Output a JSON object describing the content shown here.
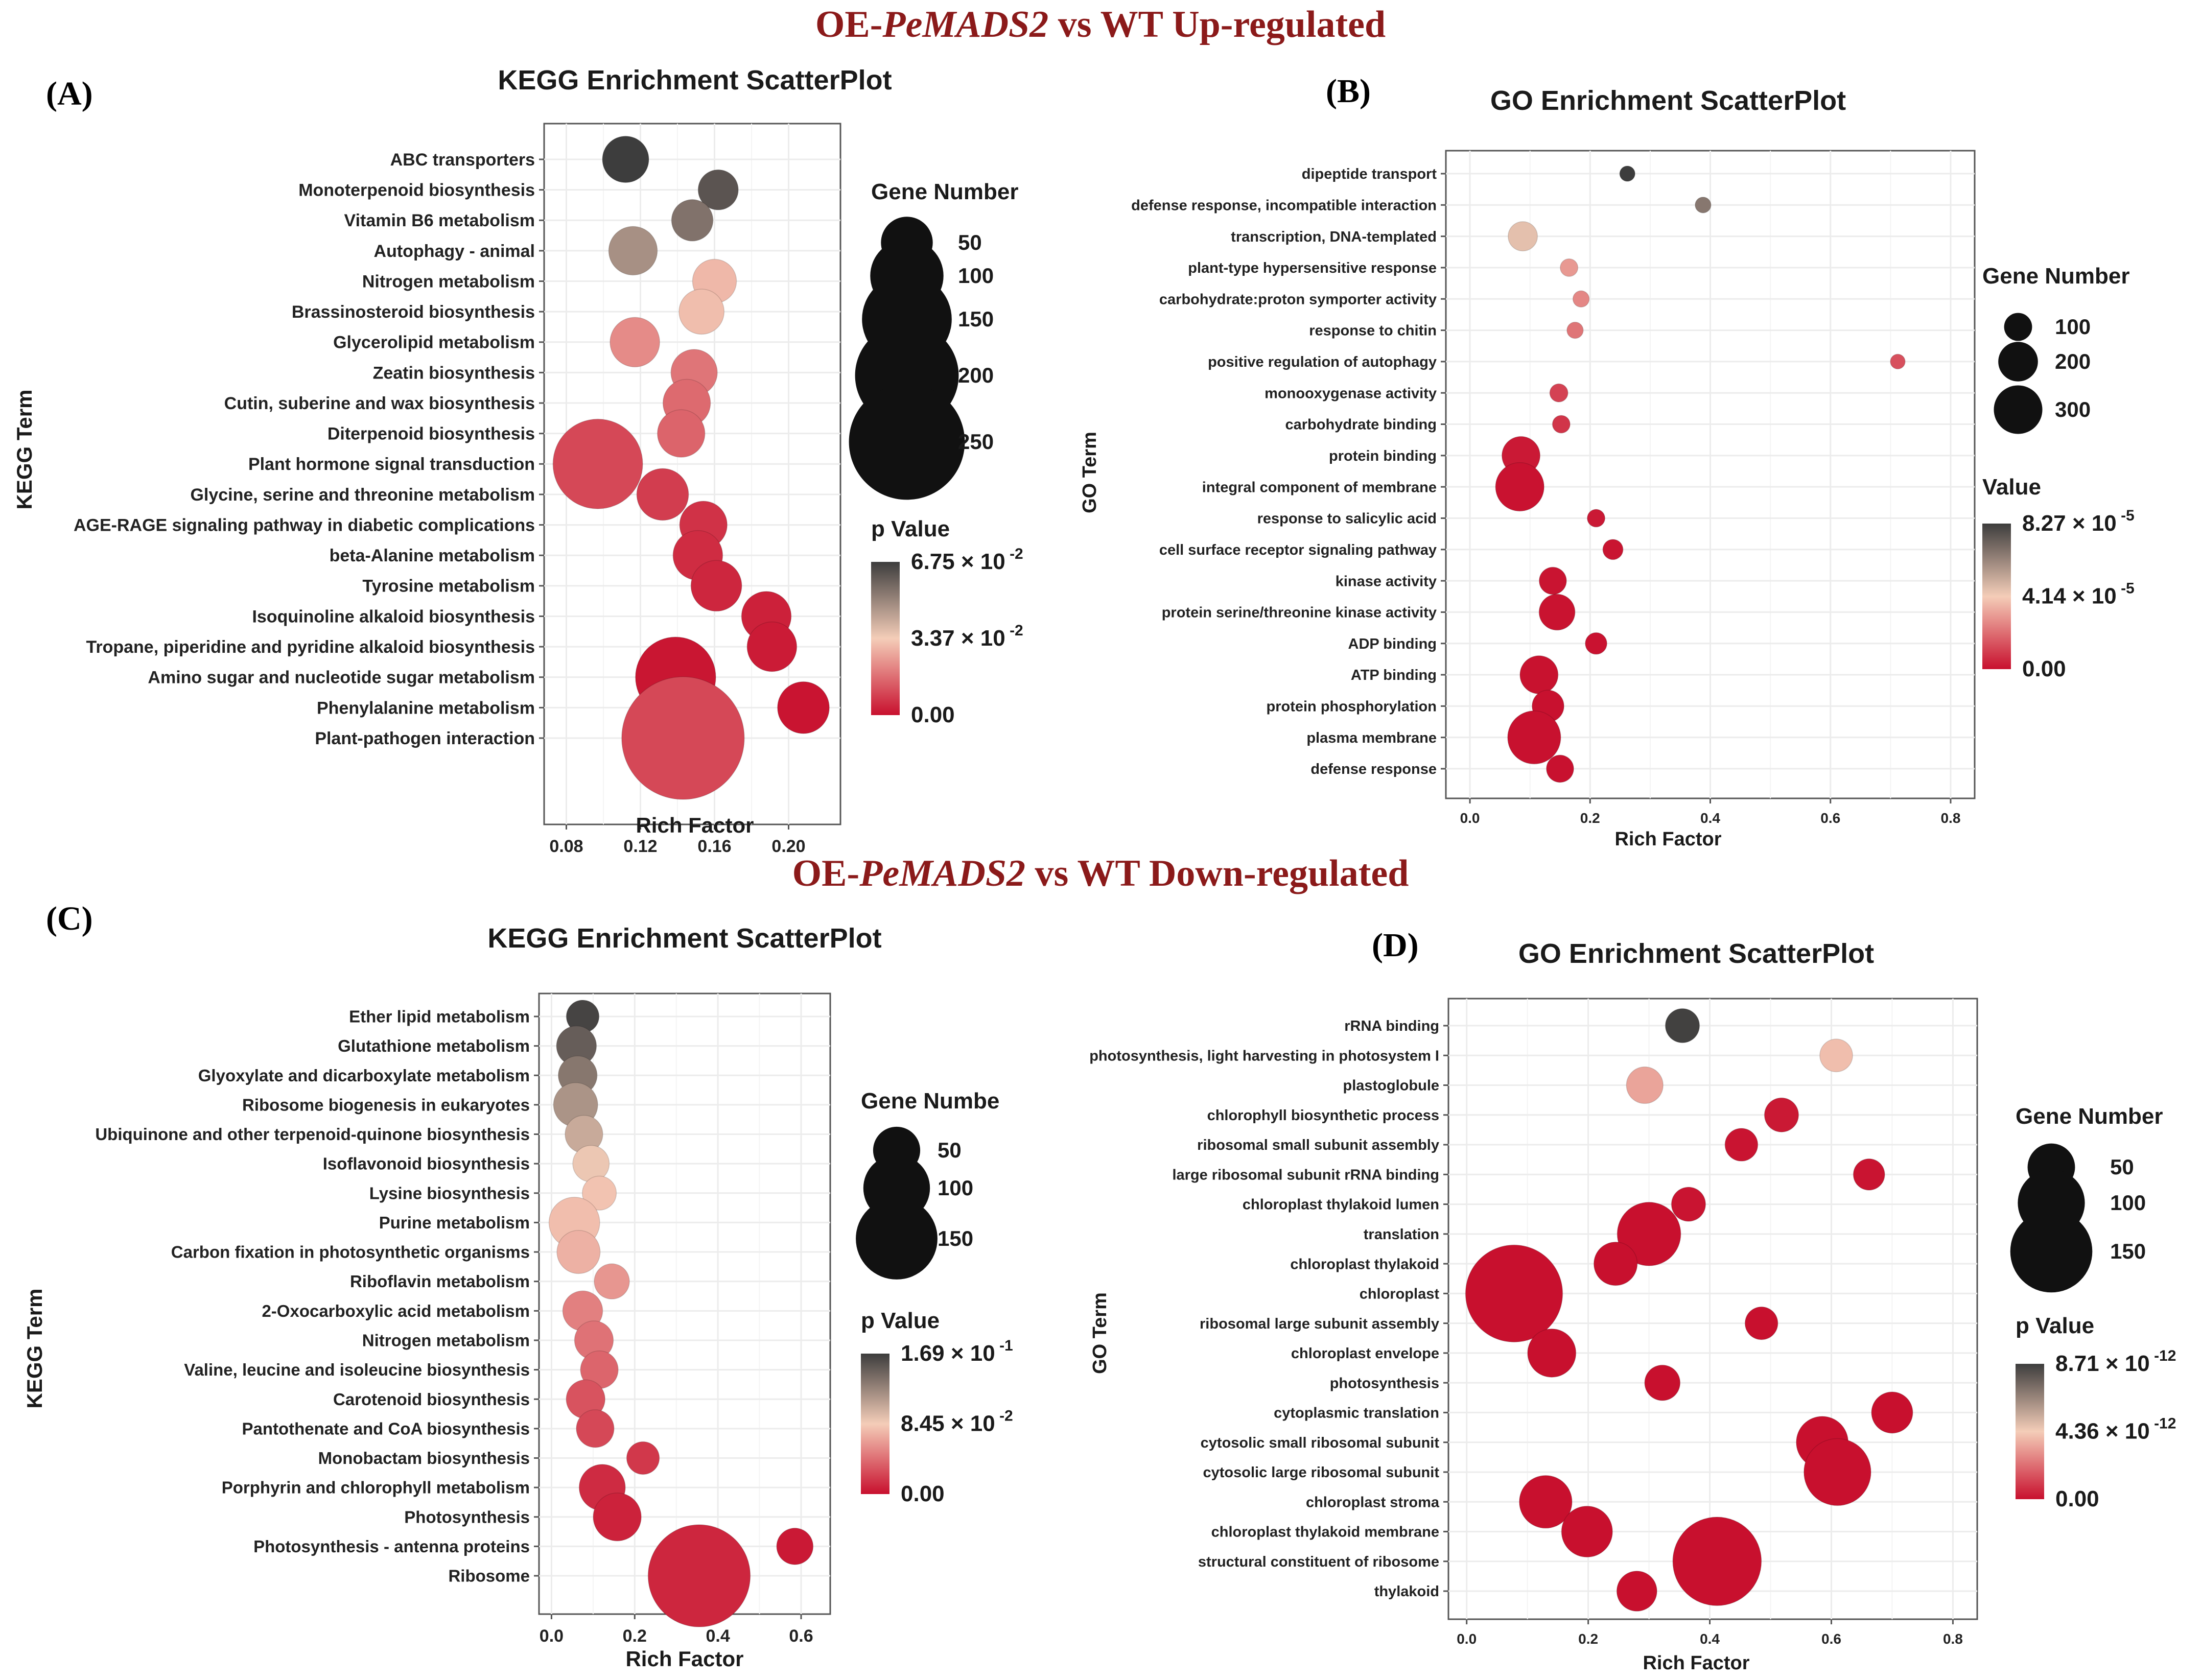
{
  "banners": {
    "up": {
      "prefix": "OE-",
      "gene": "PeMADS2",
      "suffix": " vs WT  Up-regulated"
    },
    "down": {
      "prefix": "OE-",
      "gene": "PeMADS2",
      "suffix": " vs WT  Down-regulated"
    }
  },
  "colors": {
    "banner": "#8b1a1a",
    "pLow": "#c8102e",
    "pMid": "#f4cdb8",
    "pHigh": "#3d3d3d"
  },
  "chart_data": [
    {
      "id": "A",
      "panel_label": "(A)",
      "type": "scatter",
      "title": "KEGG Enrichment ScatterPlot",
      "xlabel": "Rich Factor",
      "ylabel": "KEGG Term",
      "xlim": [
        0.068,
        0.228
      ],
      "xticks": [
        0.08,
        0.12,
        0.16,
        0.2
      ],
      "xtick_labels": [
        "0.08",
        "0.12",
        "0.16",
        "0.20"
      ],
      "grid": true,
      "size_legend": {
        "title": "Gene Number",
        "values": [
          50,
          100,
          150,
          200,
          250
        ]
      },
      "color_legend": {
        "title": "p Value",
        "max": 0.0675,
        "labels": [
          "6.75 × 10",
          "3.37 × 10",
          "0.00"
        ],
        "exps": [
          "-2",
          "-2",
          ""
        ]
      },
      "points": [
        {
          "term": "ABC transporters",
          "x": 0.112,
          "genes": 40,
          "p": 0.0675
        },
        {
          "term": "Monoterpenoid biosynthesis",
          "x": 0.162,
          "genes": 30,
          "p": 0.062
        },
        {
          "term": "Vitamin B6 metabolism",
          "x": 0.148,
          "genes": 32,
          "p": 0.055
        },
        {
          "term": "Autophagy - animal",
          "x": 0.116,
          "genes": 44,
          "p": 0.048
        },
        {
          "term": "Nitrogen metabolism",
          "x": 0.16,
          "genes": 36,
          "p": 0.03
        },
        {
          "term": "Brassinosteroid biosynthesis",
          "x": 0.153,
          "genes": 38,
          "p": 0.031
        },
        {
          "term": "Glycerolipid metabolism",
          "x": 0.117,
          "genes": 46,
          "p": 0.022
        },
        {
          "term": "Zeatin biosynthesis",
          "x": 0.149,
          "genes": 40,
          "p": 0.018
        },
        {
          "term": "Cutin, suberine and wax biosynthesis",
          "x": 0.145,
          "genes": 42,
          "p": 0.016
        },
        {
          "term": "Diterpenoid biosynthesis",
          "x": 0.142,
          "genes": 42,
          "p": 0.015
        },
        {
          "term": "Plant hormone signal transduction",
          "x": 0.097,
          "genes": 150,
          "p": 0.01
        },
        {
          "term": "Glycine, serine and threonine metabolism",
          "x": 0.132,
          "genes": 50,
          "p": 0.008
        },
        {
          "term": "AGE-RAGE signaling pathway in diabetic complications",
          "x": 0.154,
          "genes": 42,
          "p": 0.006
        },
        {
          "term": "beta-Alanine metabolism",
          "x": 0.151,
          "genes": 46,
          "p": 0.005
        },
        {
          "term": "Tyrosine metabolism",
          "x": 0.161,
          "genes": 48,
          "p": 0.004
        },
        {
          "term": "Isoquinoline alkaloid biosynthesis",
          "x": 0.188,
          "genes": 46,
          "p": 0.003
        },
        {
          "term": "Tropane, piperidine and pyridine alkaloid biosynthesis",
          "x": 0.191,
          "genes": 46,
          "p": 0.002
        },
        {
          "term": "Amino sugar and nucleotide sugar metabolism",
          "x": 0.139,
          "genes": 120,
          "p": 0.001
        },
        {
          "term": "Phenylalanine metabolism",
          "x": 0.208,
          "genes": 50,
          "p": 0.0008
        },
        {
          "term": "Plant-pathogen interaction",
          "x": 0.143,
          "genes": 280,
          "p": 0.01
        }
      ]
    },
    {
      "id": "B",
      "panel_label": "(B)",
      "type": "scatter",
      "title": "GO Enrichment ScatterPlot",
      "xlabel": "Rich Factor",
      "ylabel": "GO Term",
      "xlim": [
        -0.04,
        0.84
      ],
      "xticks": [
        0.0,
        0.2,
        0.4,
        0.6,
        0.8
      ],
      "xtick_labels": [
        "0.0",
        "0.2",
        "0.4",
        "0.6",
        "0.8"
      ],
      "grid": true,
      "size_legend": {
        "title": "Gene Number",
        "values": [
          100,
          200,
          300
        ]
      },
      "color_legend": {
        "title": "Value",
        "max": 8.27e-05,
        "labels": [
          "8.27 × 10",
          "4.14 × 10",
          "0.00"
        ],
        "exps": [
          "-5",
          "-5",
          ""
        ]
      },
      "points": [
        {
          "term": "dipeptide transport",
          "x": 0.262,
          "genes": 30,
          "p": 8.27e-05
        },
        {
          "term": "defense response, incompatible interaction",
          "x": 0.388,
          "genes": 32,
          "p": 6.6e-05
        },
        {
          "term": "transcription, DNA-templated",
          "x": 0.088,
          "genes": 110,
          "p": 4.5e-05
        },
        {
          "term": "plant-type hypersensitive response",
          "x": 0.165,
          "genes": 40,
          "p": 3e-05
        },
        {
          "term": "carbohydrate:proton symporter activity",
          "x": 0.185,
          "genes": 34,
          "p": 2.6e-05
        },
        {
          "term": "response to chitin",
          "x": 0.175,
          "genes": 34,
          "p": 2.2e-05
        },
        {
          "term": "positive regulation of autophagy",
          "x": 0.712,
          "genes": 28,
          "p": 1.4e-05
        },
        {
          "term": "monooxygenase activity",
          "x": 0.148,
          "genes": 42,
          "p": 1.1e-05
        },
        {
          "term": "carbohydrate binding",
          "x": 0.152,
          "genes": 40,
          "p": 8e-06
        },
        {
          "term": "protein binding",
          "x": 0.085,
          "genes": 185,
          "p": 2e-06
        },
        {
          "term": "integral component of membrane",
          "x": 0.083,
          "genes": 300,
          "p": 5e-07
        },
        {
          "term": "response to salicylic acid",
          "x": 0.21,
          "genes": 40,
          "p": 2e-06
        },
        {
          "term": "cell surface receptor signaling pathway",
          "x": 0.238,
          "genes": 52,
          "p": 1e-06
        },
        {
          "term": "kinase activity",
          "x": 0.138,
          "genes": 95,
          "p": 8e-07
        },
        {
          "term": "protein serine/threonine kinase activity",
          "x": 0.145,
          "genes": 165,
          "p": 6e-07
        },
        {
          "term": "ADP binding",
          "x": 0.21,
          "genes": 60,
          "p": 5e-07
        },
        {
          "term": "ATP binding",
          "x": 0.115,
          "genes": 185,
          "p": 4e-07
        },
        {
          "term": "protein phosphorylation",
          "x": 0.13,
          "genes": 130,
          "p": 3e-07
        },
        {
          "term": "plasma membrane",
          "x": 0.107,
          "genes": 360,
          "p": 2e-07
        },
        {
          "term": "defense response",
          "x": 0.15,
          "genes": 95,
          "p": 2e-07
        }
      ]
    },
    {
      "id": "C",
      "panel_label": "(C)",
      "type": "scatter",
      "title": "KEGG Enrichment ScatterPlot",
      "xlabel": "Rich Factor",
      "ylabel": "KEGG Term",
      "xlim": [
        -0.03,
        0.67
      ],
      "xticks": [
        0.0,
        0.2,
        0.4,
        0.6
      ],
      "xtick_labels": [
        "0.0",
        "0.2",
        "0.4",
        "0.6"
      ],
      "grid": true,
      "size_legend": {
        "title": "Gene Numbe",
        "values": [
          50,
          100,
          150
        ]
      },
      "color_legend": {
        "title": "p Value",
        "max": 0.169,
        "labels": [
          "1.69 × 10",
          "8.45 × 10",
          "0.00"
        ],
        "exps": [
          "-1",
          "-2",
          ""
        ]
      },
      "points": [
        {
          "term": "Ether lipid metabolism",
          "x": 0.075,
          "genes": 24,
          "p": 0.165
        },
        {
          "term": "Glutathione metabolism",
          "x": 0.06,
          "genes": 36,
          "p": 0.15
        },
        {
          "term": "Glyoxylate and dicarboxylate metabolism",
          "x": 0.063,
          "genes": 34,
          "p": 0.135
        },
        {
          "term": "Ribosome biogenesis in eukaryotes",
          "x": 0.058,
          "genes": 44,
          "p": 0.118
        },
        {
          "term": "Ubiquinone and other terpenoid-quinone biosynthesis",
          "x": 0.078,
          "genes": 32,
          "p": 0.105
        },
        {
          "term": "Isoflavonoid biosynthesis",
          "x": 0.095,
          "genes": 30,
          "p": 0.088
        },
        {
          "term": "Lysine biosynthesis",
          "x": 0.115,
          "genes": 26,
          "p": 0.08
        },
        {
          "term": "Purine metabolism",
          "x": 0.055,
          "genes": 58,
          "p": 0.078
        },
        {
          "term": "Carbon fixation in photosynthetic organisms",
          "x": 0.065,
          "genes": 42,
          "p": 0.072
        },
        {
          "term": "Riboflavin metabolism",
          "x": 0.145,
          "genes": 28,
          "p": 0.06
        },
        {
          "term": "2-Oxocarboxylic acid metabolism",
          "x": 0.075,
          "genes": 36,
          "p": 0.05
        },
        {
          "term": "Nitrogen metabolism",
          "x": 0.102,
          "genes": 34,
          "p": 0.044
        },
        {
          "term": "Valine, leucine and isoleucine biosynthesis",
          "x": 0.115,
          "genes": 32,
          "p": 0.038
        },
        {
          "term": "Carotenoid biosynthesis",
          "x": 0.082,
          "genes": 34,
          "p": 0.03
        },
        {
          "term": "Pantothenate and CoA biosynthesis",
          "x": 0.105,
          "genes": 32,
          "p": 0.025
        },
        {
          "term": "Monobactam biosynthesis",
          "x": 0.22,
          "genes": 24,
          "p": 0.018
        },
        {
          "term": "Porphyrin and chlorophyll metabolism",
          "x": 0.122,
          "genes": 48,
          "p": 0.012
        },
        {
          "term": "Photosynthesis",
          "x": 0.158,
          "genes": 52,
          "p": 0.008
        },
        {
          "term": "Photosynthesis - antenna proteins",
          "x": 0.585,
          "genes": 30,
          "p": 0.004
        },
        {
          "term": "Ribosome",
          "x": 0.355,
          "genes": 235,
          "p": 0.01
        }
      ]
    },
    {
      "id": "D",
      "panel_label": "(D)",
      "type": "scatter",
      "title": "GO Enrichment ScatterPlot",
      "xlabel": "Rich Factor",
      "ylabel": "GO Term",
      "xlim": [
        -0.03,
        0.84
      ],
      "xticks": [
        0.0,
        0.2,
        0.4,
        0.6,
        0.8
      ],
      "xtick_labels": [
        "0.0",
        "0.2",
        "0.4",
        "0.6",
        "0.8"
      ],
      "grid": true,
      "size_legend": {
        "title": "Gene Number",
        "values": [
          50,
          100,
          150
        ]
      },
      "color_legend": {
        "title": "p Value",
        "max": 8.71e-12,
        "labels": [
          "8.71 × 10",
          "4.36 × 10",
          "0.00"
        ],
        "exps": [
          "-12",
          "-12",
          ""
        ]
      },
      "points": [
        {
          "term": "rRNA binding",
          "x": 0.355,
          "genes": 26,
          "p": 8.6e-12
        },
        {
          "term": "photosynthesis, light harvesting in photosystem I",
          "x": 0.608,
          "genes": 24,
          "p": 4e-12
        },
        {
          "term": "plastoglobule",
          "x": 0.293,
          "genes": 30,
          "p": 3.4e-12
        },
        {
          "term": "chlorophyll biosynthetic process",
          "x": 0.518,
          "genes": 26,
          "p": 2e-13
        },
        {
          "term": "ribosomal small subunit assembly",
          "x": 0.452,
          "genes": 24,
          "p": 1e-13
        },
        {
          "term": "large ribosomal subunit rRNA binding",
          "x": 0.662,
          "genes": 22,
          "p": 1e-13
        },
        {
          "term": "chloroplast thylakoid lumen",
          "x": 0.365,
          "genes": 26,
          "p": 1e-13
        },
        {
          "term": "translation",
          "x": 0.3,
          "genes": 90,
          "p": 1e-14
        },
        {
          "term": "chloroplast thylakoid",
          "x": 0.245,
          "genes": 42,
          "p": 1e-14
        },
        {
          "term": "chloroplast",
          "x": 0.078,
          "genes": 210,
          "p": 1e-14
        },
        {
          "term": "ribosomal large subunit assembly",
          "x": 0.485,
          "genes": 24,
          "p": 1e-14
        },
        {
          "term": "chloroplast envelope",
          "x": 0.14,
          "genes": 52,
          "p": 1e-14
        },
        {
          "term": "photosynthesis",
          "x": 0.322,
          "genes": 28,
          "p": 1e-14
        },
        {
          "term": "cytoplasmic translation",
          "x": 0.7,
          "genes": 38,
          "p": 1e-15
        },
        {
          "term": "cytosolic small ribosomal subunit",
          "x": 0.585,
          "genes": 60,
          "p": 1e-15
        },
        {
          "term": "cytosolic large ribosomal subunit",
          "x": 0.61,
          "genes": 100,
          "p": 1e-15
        },
        {
          "term": "chloroplast stroma",
          "x": 0.13,
          "genes": 62,
          "p": 1e-15
        },
        {
          "term": "chloroplast thylakoid membrane",
          "x": 0.198,
          "genes": 58,
          "p": 1e-15
        },
        {
          "term": "structural constituent of ribosome",
          "x": 0.412,
          "genes": 175,
          "p": 1e-15
        },
        {
          "term": "thylakoid",
          "x": 0.28,
          "genes": 36,
          "p": 1e-15
        }
      ]
    }
  ]
}
